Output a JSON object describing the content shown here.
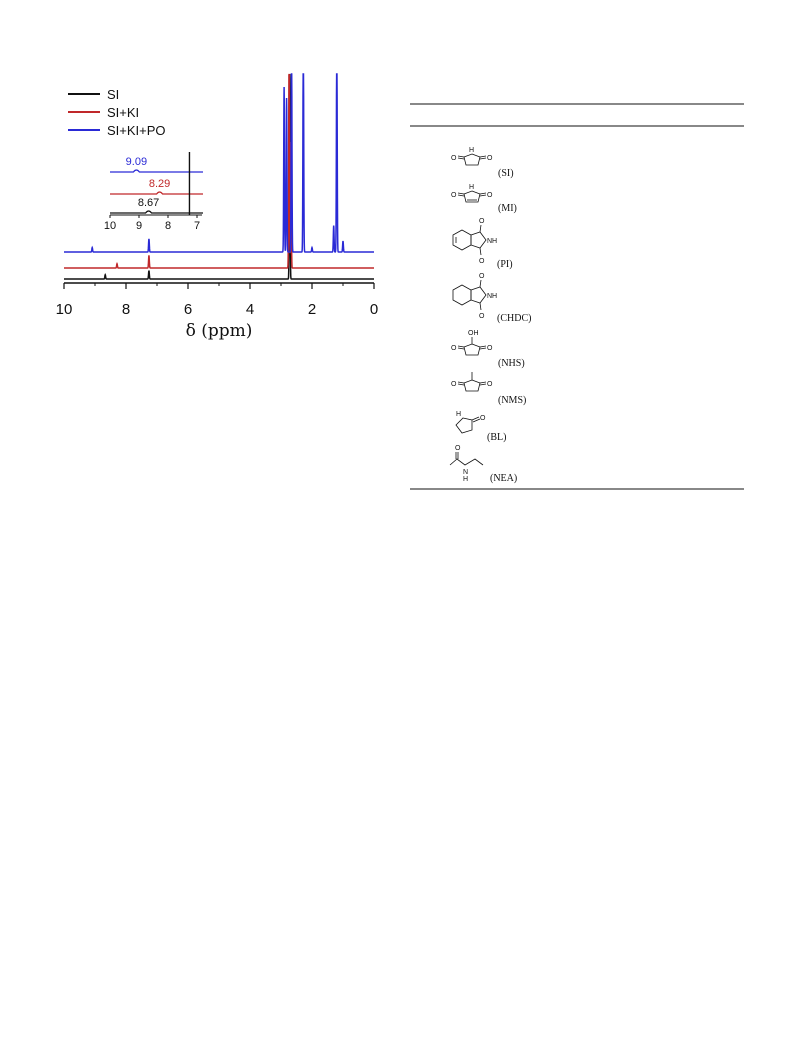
{
  "chart_data": {
    "type": "line",
    "title": "",
    "xlabel": "δ (ppm)",
    "ylabel": "",
    "xlim": [
      10,
      0
    ],
    "x_reversed": true,
    "x_ticks": [
      10,
      8,
      6,
      4,
      2,
      0
    ],
    "y_axis_visible": false,
    "legend": {
      "placement": "top-left",
      "entries": [
        {
          "name": "SI",
          "color": "#111111"
        },
        {
          "name": "SI+KI",
          "color": "#c0282a"
        },
        {
          "name": "SI+KI+PO",
          "color": "#2a2ad6"
        }
      ]
    },
    "series": [
      {
        "name": "SI",
        "color": "#111111",
        "peaks": [
          {
            "ppm": 8.67,
            "intensity": 0.02
          },
          {
            "ppm": 7.26,
            "intensity": 0.04
          },
          {
            "ppm": 2.72,
            "intensity": 1.0
          }
        ]
      },
      {
        "name": "SI+KI",
        "color": "#c0282a",
        "peaks": [
          {
            "ppm": 8.29,
            "intensity": 0.02
          },
          {
            "ppm": 7.26,
            "intensity": 0.06
          },
          {
            "ppm": 2.74,
            "intensity": 1.0
          },
          {
            "ppm": 2.68,
            "intensity": 0.6
          }
        ]
      },
      {
        "name": "SI+KI+PO",
        "color": "#2a2ad6",
        "peaks": [
          {
            "ppm": 9.09,
            "intensity": 0.02
          },
          {
            "ppm": 7.26,
            "intensity": 0.06
          },
          {
            "ppm": 2.9,
            "intensity": 0.75
          },
          {
            "ppm": 2.82,
            "intensity": 0.7
          },
          {
            "ppm": 2.66,
            "intensity": 1.0
          },
          {
            "ppm": 2.28,
            "intensity": 1.0
          },
          {
            "ppm": 2.0,
            "intensity": 0.02
          },
          {
            "ppm": 1.3,
            "intensity": 0.12
          },
          {
            "ppm": 1.2,
            "intensity": 1.0
          },
          {
            "ppm": 1.0,
            "intensity": 0.05
          }
        ]
      }
    ],
    "inset": {
      "xlim": [
        10,
        7
      ],
      "x_ticks": [
        10,
        9,
        8,
        7
      ],
      "labels": [
        {
          "series": "SI+KI+PO",
          "text": "9.09",
          "ppm": 9.09,
          "color": "#2a2ad6"
        },
        {
          "series": "SI+KI",
          "text": "8.29",
          "ppm": 8.29,
          "color": "#c0282a"
        },
        {
          "series": "SI",
          "text": "8.67",
          "ppm": 8.67,
          "color": "#111111"
        }
      ]
    }
  },
  "table": {
    "rows": [
      {
        "abbr": "(SI)",
        "structure": "succinimide"
      },
      {
        "abbr": "(MI)",
        "structure": "maleimide"
      },
      {
        "abbr": "(PI)",
        "structure": "phthalimide"
      },
      {
        "abbr": "(CHDC)",
        "structure": "cyclohexane-dicarboximide"
      },
      {
        "abbr": "(NHS)",
        "structure": "n-hydroxysuccinimide"
      },
      {
        "abbr": "(NMS)",
        "structure": "n-methylsuccinimide"
      },
      {
        "abbr": "(BL)",
        "structure": "butyrolactam"
      },
      {
        "abbr": "(NEA)",
        "structure": "n-ethylacetamide"
      }
    ]
  }
}
